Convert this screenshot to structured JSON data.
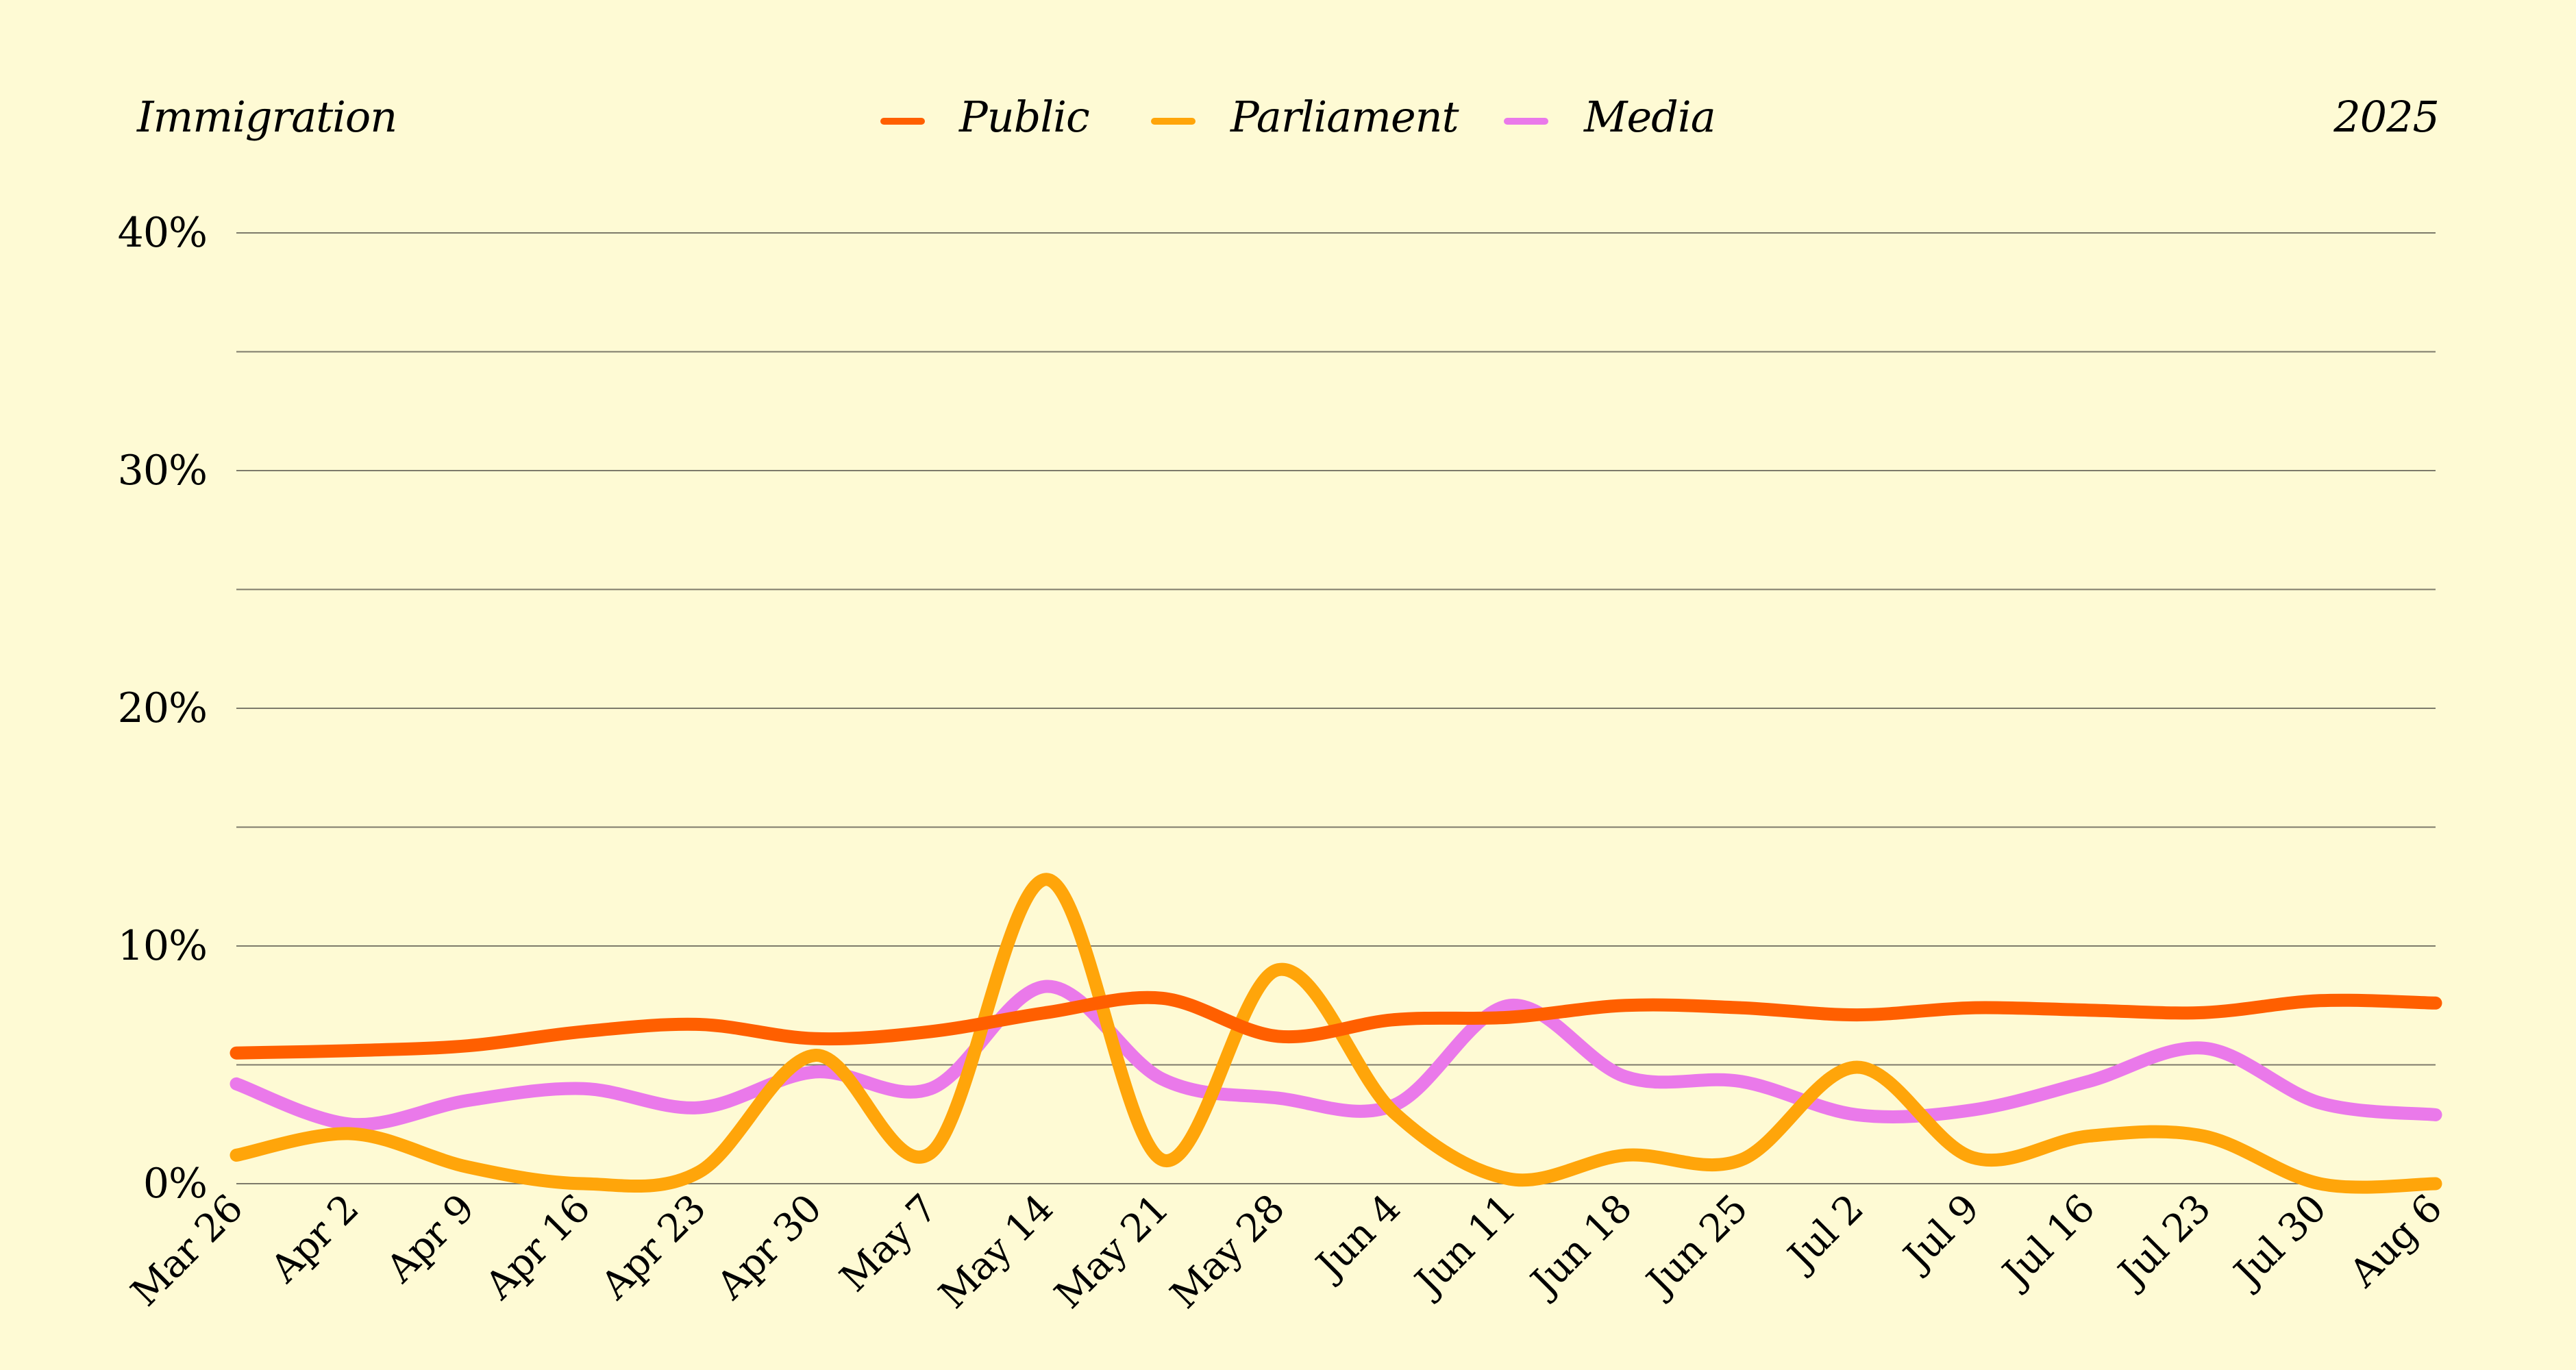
{
  "chart_data": {
    "type": "line",
    "title": "Immigration",
    "year_label": "2025",
    "x": [
      "Mar 26",
      "Apr 2",
      "Apr 9",
      "Apr 16",
      "Apr 23",
      "Apr 30",
      "May 7",
      "May 14",
      "May 21",
      "May 28",
      "Jun 4",
      "Jun 11",
      "Jun 18",
      "Jun 25",
      "Jul 2",
      "Jul 9",
      "Jul 16",
      "Jul 23",
      "Jul 30",
      "Aug 6"
    ],
    "ylim": [
      0,
      40
    ],
    "y_ticks": [
      0,
      10,
      20,
      30,
      40
    ],
    "y_tick_labels": [
      "0%",
      "10%",
      "20%",
      "30%",
      "40%"
    ],
    "y_unit": "%",
    "grid": true,
    "legend_position": "top-center",
    "series": [
      {
        "name": "Public",
        "color": "#ff5f00",
        "values": [
          5.5,
          5.6,
          5.8,
          6.4,
          6.7,
          6.1,
          6.4,
          7.2,
          7.8,
          6.2,
          6.9,
          7.0,
          7.5,
          7.4,
          7.1,
          7.4,
          7.3,
          7.2,
          7.7,
          7.6
        ]
      },
      {
        "name": "Parliament",
        "color": "#ffa50a",
        "values": [
          1.2,
          2.1,
          0.7,
          0.0,
          0.5,
          5.4,
          1.3,
          12.8,
          1.0,
          9.0,
          3.0,
          0.2,
          1.2,
          1.0,
          4.9,
          1.1,
          2.0,
          2.0,
          0.0,
          0.0
        ]
      },
      {
        "name": "Media",
        "color": "#ea79ea",
        "values": [
          4.2,
          2.5,
          3.5,
          4.0,
          3.2,
          4.7,
          4.0,
          8.3,
          4.4,
          3.6,
          3.3,
          7.5,
          4.5,
          4.3,
          2.9,
          3.1,
          4.3,
          5.7,
          3.4,
          2.9
        ]
      }
    ]
  }
}
